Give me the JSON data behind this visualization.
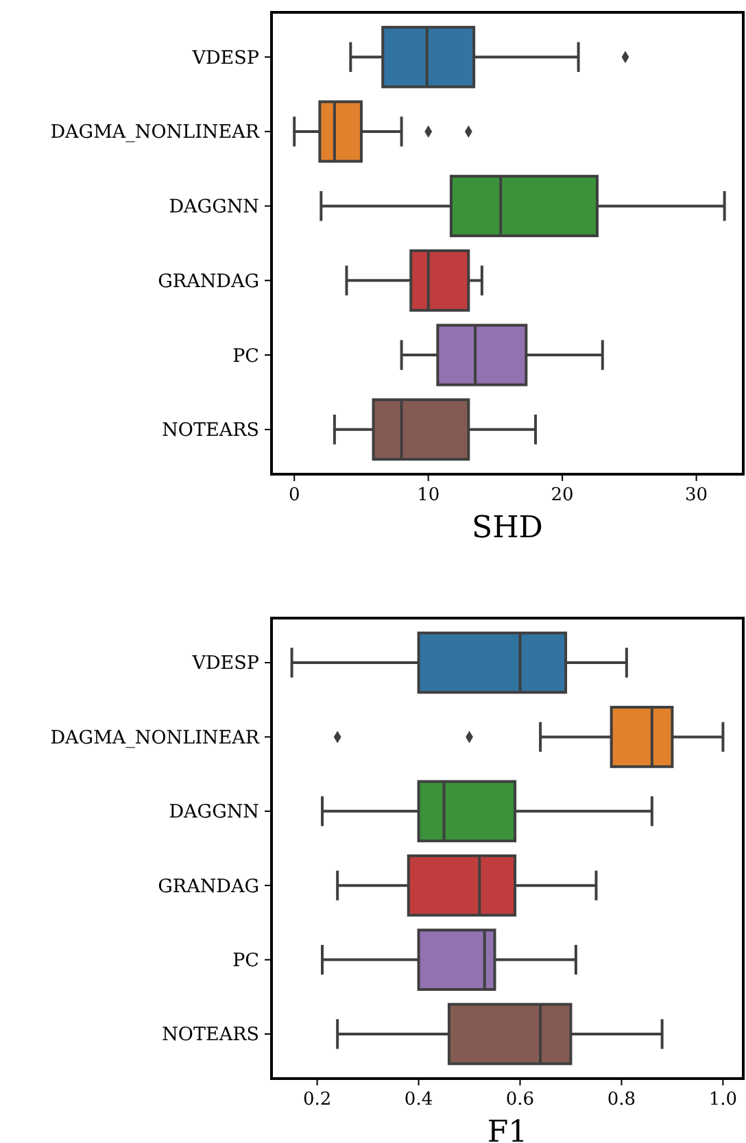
{
  "chart_data": [
    {
      "type": "box",
      "orientation": "horizontal",
      "xlabel": "SHD",
      "categories": [
        "VDESP",
        "DAGMA_NONLINEAR",
        "DAGGNN",
        "GRANDAG",
        "PC",
        "NOTEARS"
      ],
      "colors": [
        "#3274a1",
        "#e1812c",
        "#3a923a",
        "#c03d3e",
        "#9372b2",
        "#845b53"
      ],
      "boxes": [
        {
          "low": 4.2,
          "q1": 6.6,
          "median": 9.9,
          "q3": 13.4,
          "high": 21.2,
          "outliers": [
            24.7
          ]
        },
        {
          "low": 0,
          "q1": 1.9,
          "median": 3,
          "q3": 5,
          "high": 8,
          "outliers": [
            10,
            13
          ]
        },
        {
          "low": 2,
          "q1": 11.7,
          "median": 15.4,
          "q3": 22.6,
          "high": 32.1
        },
        {
          "low": 3.9,
          "q1": 8.7,
          "median": 10,
          "q3": 13,
          "high": 14
        },
        {
          "low": 8,
          "q1": 10.7,
          "median": 13.5,
          "q3": 17.3,
          "high": 23
        },
        {
          "low": 3,
          "q1": 5.9,
          "median": 8,
          "q3": 13,
          "high": 18
        }
      ],
      "xlim": [
        -1.7,
        33.5
      ],
      "xticks": [
        0,
        10,
        20,
        30
      ],
      "marker": "diamond"
    },
    {
      "type": "box",
      "orientation": "horizontal",
      "xlabel": "F1",
      "categories": [
        "VDESP",
        "DAGMA_NONLINEAR",
        "DAGGNN",
        "GRANDAG",
        "PC",
        "NOTEARS"
      ],
      "colors": [
        "#3274a1",
        "#e1812c",
        "#3a923a",
        "#c03d3e",
        "#9372b2",
        "#845b53"
      ],
      "boxes": [
        {
          "low": 0.15,
          "q1": 0.4,
          "median": 0.6,
          "q3": 0.69,
          "high": 0.81
        },
        {
          "low": 0.64,
          "q1": 0.78,
          "median": 0.86,
          "q3": 0.9,
          "high": 1.0,
          "outliers": [
            0.24,
            0.5
          ]
        },
        {
          "low": 0.21,
          "q1": 0.4,
          "median": 0.45,
          "q3": 0.59,
          "high": 0.86
        },
        {
          "low": 0.24,
          "q1": 0.38,
          "median": 0.52,
          "q3": 0.59,
          "high": 0.75
        },
        {
          "low": 0.21,
          "q1": 0.4,
          "median": 0.53,
          "q3": 0.55,
          "high": 0.71
        },
        {
          "low": 0.24,
          "q1": 0.46,
          "median": 0.64,
          "q3": 0.7,
          "high": 0.88
        }
      ],
      "xlim": [
        0.11,
        1.04
      ],
      "xticks": [
        {
          "value": 0.2,
          "label": "0.2"
        },
        {
          "value": 0.4,
          "label": "0.4"
        },
        {
          "value": 0.6,
          "label": "0.6"
        },
        {
          "value": 0.8,
          "label": "0.8"
        },
        {
          "value": 1.0,
          "label": "1.0"
        }
      ],
      "marker": "diamond"
    }
  ]
}
